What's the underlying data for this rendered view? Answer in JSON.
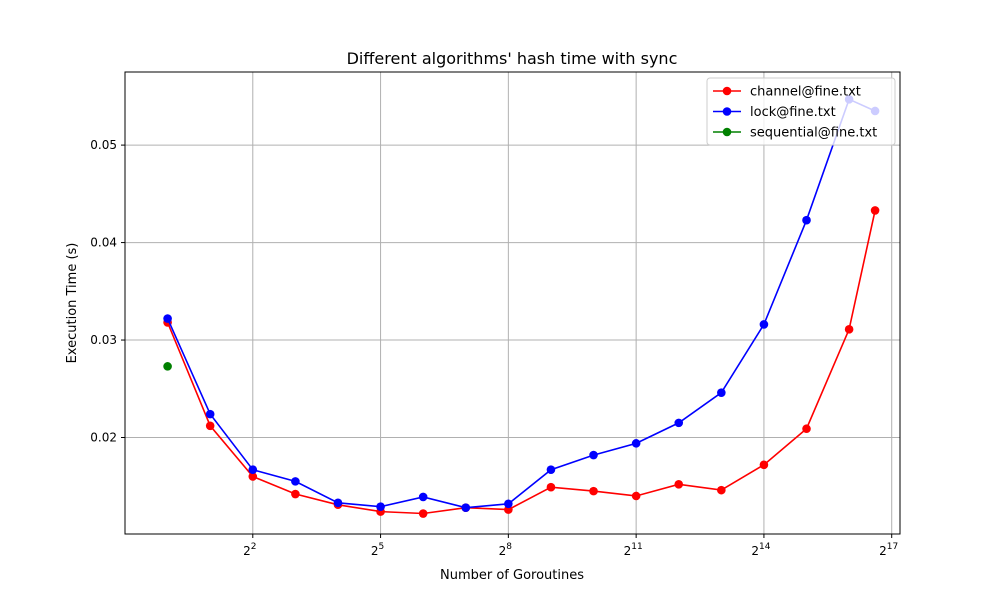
{
  "chart_data": {
    "type": "line",
    "title": "Different algorithms' hash time with sync",
    "xlabel": "Number of Goroutines",
    "ylabel": "Execution Time (s)",
    "x_scale": "log2",
    "x": [
      1,
      2,
      4,
      8,
      16,
      32,
      64,
      128,
      256,
      512,
      1024,
      2048,
      4096,
      8192,
      16384,
      32768,
      65536,
      100000
    ],
    "xlim": [
      0.5,
      150000
    ],
    "ylim": [
      0.0101,
      0.0575
    ],
    "x_ticks": [
      {
        "value": 4,
        "base": "2",
        "exp": "2"
      },
      {
        "value": 32,
        "base": "2",
        "exp": "5"
      },
      {
        "value": 256,
        "base": "2",
        "exp": "8"
      },
      {
        "value": 2048,
        "base": "2",
        "exp": "11"
      },
      {
        "value": 16384,
        "base": "2",
        "exp": "14"
      },
      {
        "value": 131072,
        "base": "2",
        "exp": "17"
      }
    ],
    "y_ticks": [
      {
        "value": 0.02,
        "label": "0.02"
      },
      {
        "value": 0.03,
        "label": "0.03"
      },
      {
        "value": 0.04,
        "label": "0.04"
      },
      {
        "value": 0.05,
        "label": "0.05"
      }
    ],
    "grid": true,
    "legend_position": "top-right",
    "series": [
      {
        "name": "channel@fine.txt",
        "color": "#ff0000",
        "values": [
          0.0318,
          0.0212,
          0.016,
          0.0142,
          0.0131,
          0.0124,
          0.0122,
          0.0128,
          0.0126,
          0.0149,
          0.0145,
          0.014,
          0.0152,
          0.0146,
          0.0172,
          0.0209,
          0.0311,
          0.0433
        ]
      },
      {
        "name": "lock@fine.txt",
        "color": "#0000ff",
        "values": [
          0.0322,
          0.0224,
          0.0167,
          0.0155,
          0.0133,
          0.0129,
          0.0139,
          0.0128,
          0.0132,
          0.0167,
          0.0182,
          0.0194,
          0.0215,
          0.0246,
          0.0316,
          0.0423,
          0.0547,
          0.0535
        ]
      },
      {
        "name": "sequential@fine.txt",
        "color": "#008000",
        "x": [
          1
        ],
        "values": [
          0.0273
        ]
      }
    ]
  }
}
